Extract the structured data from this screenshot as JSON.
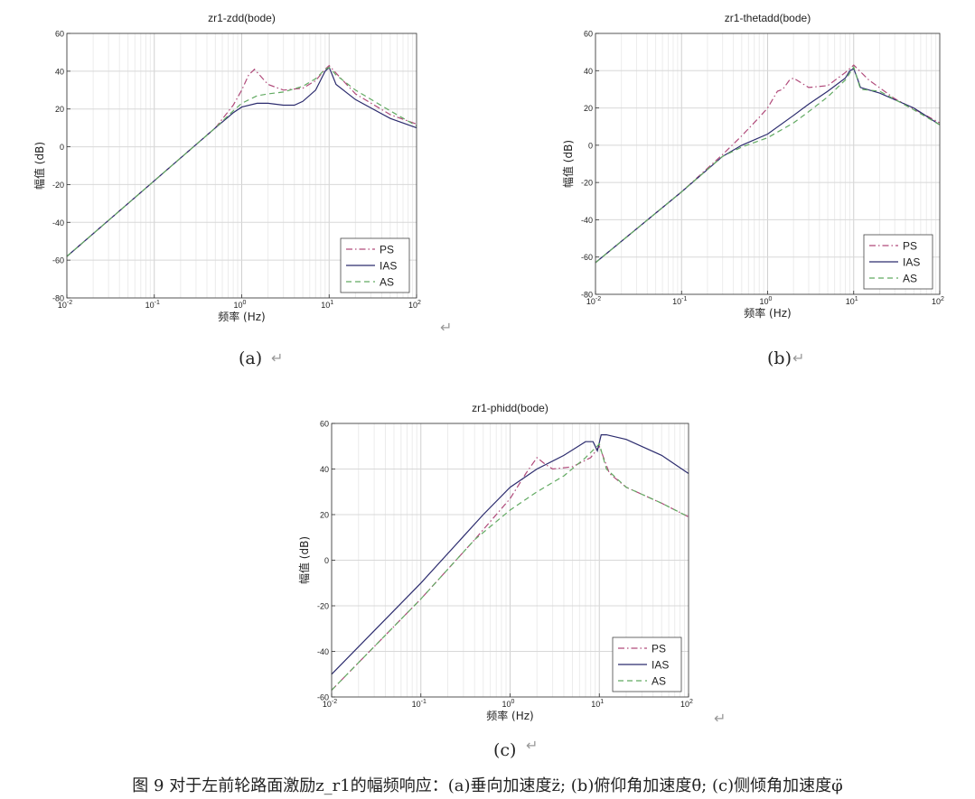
{
  "chart_data": [
    {
      "type": "line",
      "title": "zr1-zdd(bode)",
      "xlabel": "频率 (Hz)",
      "ylabel": "幅值 (dB)",
      "xscale": "log",
      "xlim": [
        0.01,
        100
      ],
      "ylim": [
        -80,
        60
      ],
      "yticks": [
        -80,
        -60,
        -40,
        -20,
        0,
        20,
        40,
        60
      ],
      "xticks": [
        "10-2",
        "10-1",
        "100",
        "101",
        "102"
      ],
      "grid": true,
      "legend_position": "bottom-right",
      "series": [
        {
          "name": "PS",
          "color": "#b04a7a",
          "style": "dash-dot",
          "x": [
            0.01,
            0.1,
            0.5,
            0.8,
            1.0,
            1.2,
            1.4,
            1.6,
            2.0,
            3.0,
            5.0,
            7.0,
            9.0,
            10.0,
            12.0,
            20.0,
            50.0,
            100.0
          ],
          "y": [
            -58,
            -18,
            10,
            22,
            30,
            38,
            41,
            38,
            33,
            30,
            31,
            35,
            41,
            43,
            39,
            28,
            17,
            12
          ]
        },
        {
          "name": "IAS",
          "color": "#2c2c6e",
          "style": "solid",
          "x": [
            0.01,
            0.1,
            0.5,
            0.8,
            1.0,
            1.5,
            2.0,
            3.0,
            4.0,
            5.0,
            7.0,
            9.0,
            10.0,
            12.0,
            20.0,
            50.0,
            100.0
          ],
          "y": [
            -58,
            -18,
            10,
            18,
            21,
            23,
            23,
            22,
            22,
            24,
            30,
            40,
            42,
            33,
            25,
            15,
            10
          ]
        },
        {
          "name": "AS",
          "color": "#62aa62",
          "style": "dashed",
          "x": [
            0.01,
            0.1,
            0.5,
            0.8,
            1.0,
            1.5,
            2.0,
            3.0,
            5.0,
            7.0,
            9.0,
            10.0,
            12.0,
            20.0,
            50.0,
            100.0
          ],
          "y": [
            -58,
            -18,
            10,
            19,
            23,
            27,
            28,
            29,
            32,
            36,
            41,
            42,
            38,
            30,
            19,
            11
          ]
        }
      ]
    },
    {
      "type": "line",
      "title": "zr1-thetadd(bode)",
      "xlabel": "频率 (Hz)",
      "ylabel": "幅值 (dB)",
      "xscale": "log",
      "xlim": [
        0.01,
        100
      ],
      "ylim": [
        -80,
        60
      ],
      "yticks": [
        -80,
        -60,
        -40,
        -20,
        0,
        20,
        40,
        60
      ],
      "xticks": [
        "10-2",
        "10-1",
        "100",
        "101",
        "102"
      ],
      "grid": true,
      "legend_position": "bottom-right",
      "series": [
        {
          "name": "PS",
          "color": "#b04a7a",
          "style": "dash-dot",
          "x": [
            0.01,
            0.1,
            0.3,
            0.5,
            0.8,
            1.0,
            1.3,
            1.5,
            1.8,
            2.0,
            3.0,
            5.0,
            8.0,
            10.0,
            15.0,
            30.0,
            100.0
          ],
          "y": [
            -63,
            -25,
            -5,
            5,
            15,
            20,
            29,
            30,
            35,
            36,
            31,
            32,
            39,
            43,
            35,
            25,
            12
          ]
        },
        {
          "name": "IAS",
          "color": "#2c2c6e",
          "style": "solid",
          "x": [
            0.01,
            0.1,
            0.3,
            0.5,
            1.0,
            2.0,
            3.0,
            5.0,
            8.0,
            9.0,
            10.0,
            11.0,
            12.0,
            20.0,
            50.0,
            100.0
          ],
          "y": [
            -63,
            -25,
            -6,
            0,
            6,
            16,
            22,
            29,
            36,
            40,
            41,
            36,
            31,
            28,
            20,
            11
          ]
        },
        {
          "name": "AS",
          "color": "#62aa62",
          "style": "dashed",
          "x": [
            0.01,
            0.1,
            0.3,
            0.5,
            1.0,
            2.0,
            3.0,
            5.0,
            8.0,
            10.0,
            12.0,
            20.0,
            50.0,
            100.0
          ],
          "y": [
            -63,
            -25,
            -6,
            -1,
            4,
            12,
            18,
            26,
            35,
            42,
            30,
            29,
            19,
            11
          ]
        }
      ]
    },
    {
      "type": "line",
      "title": "zr1-phidd(bode)",
      "xlabel": "频率 (Hz)",
      "ylabel": "幅值 (dB)",
      "xscale": "log",
      "xlim": [
        0.01,
        100
      ],
      "ylim": [
        -60,
        60
      ],
      "yticks": [
        -60,
        -40,
        -20,
        0,
        20,
        40,
        60
      ],
      "xticks": [
        "10-2",
        "10-1",
        "100",
        "101",
        "102"
      ],
      "grid": true,
      "legend_position": "bottom-right",
      "series": [
        {
          "name": "PS",
          "color": "#b04a7a",
          "style": "dash-dot",
          "x": [
            0.01,
            0.1,
            0.4,
            1.0,
            1.5,
            2.0,
            2.5,
            3.0,
            5.0,
            8.0,
            10.0,
            13.0,
            20.0,
            50.0,
            100.0
          ],
          "y": [
            -57,
            -17,
            9,
            27,
            38,
            45,
            42,
            40,
            41,
            45,
            50,
            38,
            32,
            25,
            19
          ]
        },
        {
          "name": "IAS",
          "color": "#2c2c6e",
          "style": "solid",
          "x": [
            0.01,
            0.1,
            0.5,
            1.0,
            2.0,
            4.0,
            7.0,
            8.5,
            9.5,
            10.5,
            12.0,
            20.0,
            50.0,
            100.0
          ],
          "y": [
            -50,
            -10,
            20,
            32,
            40,
            46,
            52,
            52,
            48,
            55,
            55,
            53,
            46,
            38
          ]
        },
        {
          "name": "AS",
          "color": "#62aa62",
          "style": "dashed",
          "x": [
            0.01,
            0.1,
            0.4,
            1.0,
            2.0,
            4.0,
            7.0,
            10.0,
            12.0,
            20.0,
            50.0,
            100.0
          ],
          "y": [
            -57,
            -17,
            9,
            22,
            30,
            37,
            45,
            51,
            40,
            32,
            25,
            19
          ]
        }
      ]
    }
  ],
  "subcaptions": {
    "a": "(a)",
    "b": "(b)",
    "c": "(c)"
  },
  "return_glyph": "↵",
  "caption": "图 9  对于左前轮路面激励z_r1的幅频响应：(a)垂向加速度z̈; (b)俯仰角加速度θ̈; (c)侧倾角加速度φ̈"
}
